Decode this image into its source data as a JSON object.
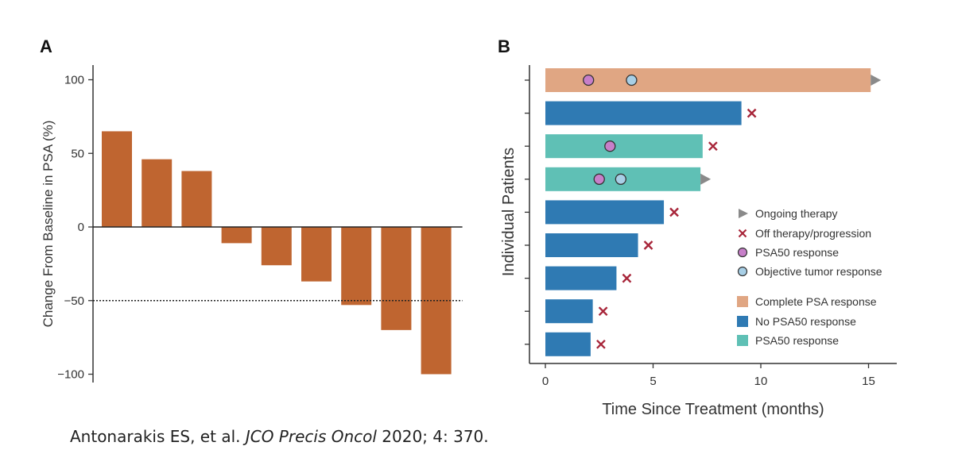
{
  "colors": {
    "waterfall_bar": "#bf6530",
    "complete_psa": "#e0a683",
    "no_psa50": "#2f7ab3",
    "psa50": "#5fc0b5",
    "marker_x": "#a8263a",
    "marker_psa50": "#c77fc9",
    "marker_objective": "#a8cfe6",
    "ongoing_arrow": "#8a8a8a",
    "axis": "#333333"
  },
  "chart_data": [
    {
      "panel": "A",
      "type": "bar",
      "ylabel": "Change From Baseline in PSA (%)",
      "xlabel": "",
      "ylim": [
        -105,
        110
      ],
      "yticks": [
        100,
        50,
        0,
        -50,
        -100
      ],
      "ytick_labels": [
        "100",
        "50",
        "0",
        "−50",
        "−100"
      ],
      "reference_line": -50,
      "values": [
        65,
        46,
        38,
        -11,
        -26,
        -37,
        -53,
        -70,
        -100
      ]
    },
    {
      "panel": "B",
      "type": "bar",
      "orientation": "horizontal",
      "xlabel": "Time Since Treatment (months)",
      "ylabel": "Individual Patients",
      "xlim": [
        -0.5,
        16.2
      ],
      "xticks": [
        0,
        5,
        10,
        15
      ],
      "xtick_labels": [
        "0",
        "5",
        "10",
        "15"
      ],
      "y_ticks_count": 9,
      "patients": [
        {
          "duration": 15.1,
          "category": "complete",
          "ongoing": true,
          "off_therapy": false,
          "psa50": [
            2.0
          ],
          "objective": [
            4.0
          ]
        },
        {
          "duration": 9.1,
          "category": "none",
          "ongoing": false,
          "off_therapy": true,
          "psa50": [],
          "objective": []
        },
        {
          "duration": 7.3,
          "category": "psa50",
          "ongoing": false,
          "off_therapy": true,
          "psa50": [
            3.0
          ],
          "objective": []
        },
        {
          "duration": 7.2,
          "category": "psa50",
          "ongoing": true,
          "off_therapy": false,
          "psa50": [
            2.5
          ],
          "objective": [
            3.5
          ]
        },
        {
          "duration": 5.5,
          "category": "none",
          "ongoing": false,
          "off_therapy": true,
          "psa50": [],
          "objective": []
        },
        {
          "duration": 4.3,
          "category": "none",
          "ongoing": false,
          "off_therapy": true,
          "psa50": [],
          "objective": []
        },
        {
          "duration": 3.3,
          "category": "none",
          "ongoing": false,
          "off_therapy": true,
          "psa50": [],
          "objective": []
        },
        {
          "duration": 2.2,
          "category": "none",
          "ongoing": false,
          "off_therapy": true,
          "psa50": [],
          "objective": []
        },
        {
          "duration": 2.1,
          "category": "none",
          "ongoing": false,
          "off_therapy": true,
          "psa50": [],
          "objective": []
        }
      ],
      "legend": {
        "placement": "right",
        "markers": [
          {
            "marker": "arrow",
            "label": "Ongoing therapy"
          },
          {
            "marker": "x",
            "label": "Off therapy/progression"
          },
          {
            "marker": "psa50",
            "label": "PSA50 response"
          },
          {
            "marker": "objective",
            "label": "Objective tumor response"
          }
        ],
        "categories": [
          {
            "category": "complete",
            "label": "Complete PSA response"
          },
          {
            "category": "none",
            "label": "No PSA50 response"
          },
          {
            "category": "psa50",
            "label": "PSA50 response"
          }
        ]
      }
    }
  ],
  "panels": {
    "a_label": "A",
    "b_label": "B"
  },
  "citation": {
    "authors": "Antonarakis ES, et al. ",
    "journal": "JCO Precis Oncol",
    "rest": " 2020; 4: 370."
  }
}
